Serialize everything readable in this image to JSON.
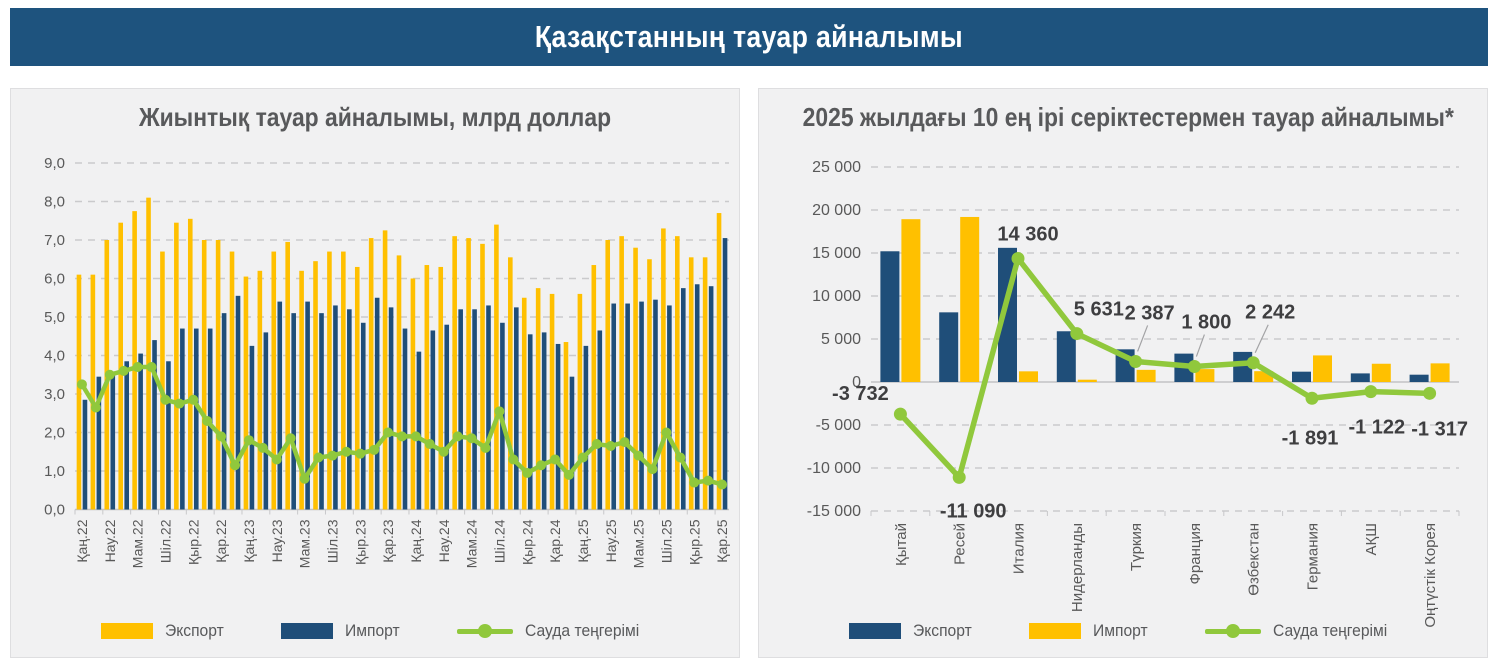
{
  "header": {
    "title": "Қазақстанның тауар айналымы"
  },
  "colors": {
    "header_bg": "#1E537E",
    "panel_bg": "#F1F1F2",
    "export_yellow": "#FFC000",
    "import_blue": "#1F4E79",
    "balance_green": "#90C83C",
    "title_gray": "#58595B",
    "axis_gray": "#595959",
    "grid_gray": "#CACACC",
    "value_label_dark": "#3E3E40"
  },
  "chart_data": [
    {
      "type": "bar",
      "combo": "bar+line",
      "title": "Жиынтық тауар айналымы, млрд доллар",
      "ylabel": "млрд доллар",
      "ylim": [
        0,
        9
      ],
      "y_tick_labels": [
        "9,0",
        "8,0",
        "7,0",
        "6,0",
        "5,0",
        "4,0",
        "3,0",
        "2,0",
        "1,0",
        "0,0"
      ],
      "grid": "horizontal dashed",
      "legend_position": "bottom",
      "categories": [
        "Қаң.22",
        "",
        "Нау.22",
        "",
        "Мам.22",
        "",
        "Шіл.22",
        "",
        "Қыр.22",
        "",
        "Қар.22",
        "",
        "Қаң.23",
        "",
        "Нау.23",
        "",
        "Мам.23",
        "",
        "Шіл.23",
        "",
        "Қыр.23",
        "",
        "Қар.23",
        "",
        "Қаң.24",
        "",
        "Нау.24",
        "",
        "Мам.24",
        "",
        "Шіл.24",
        "",
        "Қыр.24",
        "",
        "Қар.24",
        "",
        "Қаң.25",
        "",
        "Нау.25",
        "",
        "Мам.25",
        "",
        "Шіл.25",
        "",
        "Қыр.25",
        "",
        "Қар.25"
      ],
      "series": [
        {
          "name": "Экспорт",
          "type": "bar",
          "color": "#FFC000",
          "values": [
            6.1,
            6.1,
            7.0,
            7.45,
            7.75,
            8.1,
            6.7,
            7.45,
            7.55,
            7.0,
            7.0,
            6.7,
            6.05,
            6.2,
            6.7,
            6.95,
            6.2,
            6.45,
            6.7,
            6.7,
            6.3,
            7.05,
            7.25,
            6.6,
            6.0,
            6.35,
            6.3,
            7.1,
            7.05,
            6.9,
            7.4,
            6.55,
            5.5,
            5.75,
            5.6,
            4.35,
            5.6,
            6.35,
            7.0,
            7.1,
            6.8,
            6.5,
            7.3,
            7.1,
            6.55,
            6.55,
            7.7
          ]
        },
        {
          "name": "Импорт",
          "type": "bar",
          "color": "#1F4E79",
          "values": [
            2.85,
            3.45,
            3.5,
            3.85,
            4.05,
            4.4,
            3.85,
            4.7,
            4.7,
            4.7,
            5.1,
            5.55,
            4.25,
            4.6,
            5.4,
            5.1,
            5.4,
            5.1,
            5.3,
            5.2,
            4.85,
            5.5,
            5.25,
            4.7,
            4.1,
            4.65,
            4.8,
            5.2,
            5.2,
            5.3,
            4.85,
            5.25,
            4.55,
            4.6,
            4.3,
            3.45,
            4.25,
            4.65,
            5.35,
            5.35,
            5.4,
            5.45,
            5.3,
            5.75,
            5.85,
            5.8,
            7.05
          ]
        },
        {
          "name": "Сауда теңгерімі",
          "type": "line",
          "color": "#90C83C",
          "values": [
            3.25,
            2.65,
            3.5,
            3.6,
            3.7,
            3.7,
            2.85,
            2.75,
            2.85,
            2.3,
            1.9,
            1.15,
            1.8,
            1.6,
            1.3,
            1.85,
            0.8,
            1.35,
            1.4,
            1.5,
            1.45,
            1.55,
            2.0,
            1.9,
            1.9,
            1.7,
            1.5,
            1.9,
            1.85,
            1.6,
            2.55,
            1.3,
            0.95,
            1.15,
            1.3,
            0.9,
            1.35,
            1.7,
            1.65,
            1.75,
            1.4,
            1.05,
            2.0,
            1.35,
            0.7,
            0.75,
            0.65
          ]
        }
      ]
    },
    {
      "type": "bar",
      "combo": "bar+line",
      "title": "2025 жылдағы 10 ең ірі серіктестермен тауар айналымы*",
      "ylim": [
        -15000,
        25000
      ],
      "y_tick_labels": [
        "25 000",
        "20 000",
        "15 000",
        "10 000",
        "5 000",
        "0",
        "-5 000",
        "-10 000",
        "-15 000"
      ],
      "grid": "horizontal dashed",
      "legend_position": "bottom",
      "categories": [
        "Қытай",
        "Ресей",
        "Италия",
        "Нидерланды",
        "Түркия",
        "Франция",
        "Өзбекстан",
        "Германия",
        "АҚШ",
        "Оңтүстік Корея"
      ],
      "series": [
        {
          "name": "Экспорт",
          "type": "bar",
          "color": "#1F4E79",
          "values": [
            15200,
            8100,
            15600,
            5900,
            3800,
            3300,
            3500,
            1200,
            1000,
            850
          ]
        },
        {
          "name": "Импорт",
          "type": "bar",
          "color": "#FFC000",
          "values": [
            18932,
            19190,
            1240,
            269,
            1413,
            1500,
            1258,
            3091,
            2122,
            2167
          ]
        },
        {
          "name": "Сауда теңгерімі",
          "type": "line",
          "color": "#90C83C",
          "values": [
            -3732,
            -11090,
            14360,
            5631,
            2387,
            1800,
            2242,
            -1891,
            -1122,
            -1317
          ],
          "labels": [
            "-3 732",
            "-11 090",
            "14 360",
            "5 631",
            "2 387",
            "1 800",
            "2 242",
            "-1 891",
            "-1 122",
            "-1 317"
          ]
        }
      ]
    }
  ]
}
